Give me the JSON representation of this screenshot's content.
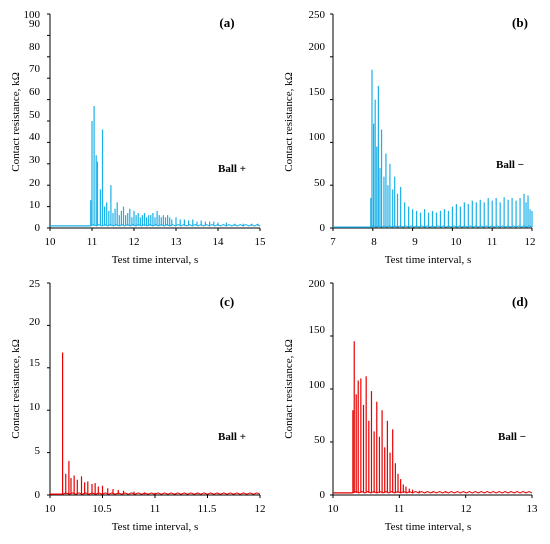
{
  "figure": {
    "xlabel": "Test time interval, s",
    "ylabel": "Contact resistance, kΩ"
  },
  "chart_data": [
    {
      "type": "line",
      "panel_label": "(a)",
      "annotation": "Ball +",
      "color": "#1ab0e8",
      "xlabel": "Test time interval, s",
      "ylabel": "Contact resistance, kΩ",
      "xlim": [
        10,
        15
      ],
      "ylim": [
        0,
        100
      ],
      "xticks": [
        10,
        11,
        12,
        13,
        14,
        15
      ],
      "yticks": [
        0,
        10,
        20,
        30,
        40,
        50,
        60,
        70,
        80,
        90,
        100
      ],
      "baseline": 1,
      "peaks": [
        [
          10.97,
          13
        ],
        [
          11.0,
          50
        ],
        [
          11.05,
          57
        ],
        [
          11.1,
          34
        ],
        [
          11.13,
          31
        ],
        [
          11.2,
          18
        ],
        [
          11.25,
          46
        ],
        [
          11.3,
          10
        ],
        [
          11.35,
          12
        ],
        [
          11.4,
          8
        ],
        [
          11.45,
          20
        ],
        [
          11.5,
          7
        ],
        [
          11.55,
          9
        ],
        [
          11.6,
          12
        ],
        [
          11.65,
          6
        ],
        [
          11.7,
          8
        ],
        [
          11.75,
          10
        ],
        [
          11.8,
          6
        ],
        [
          11.85,
          7
        ],
        [
          11.9,
          9
        ],
        [
          11.95,
          5
        ],
        [
          12.0,
          8
        ],
        [
          12.05,
          6
        ],
        [
          12.1,
          7
        ],
        [
          12.15,
          5
        ],
        [
          12.2,
          6
        ],
        [
          12.25,
          7
        ],
        [
          12.3,
          5
        ],
        [
          12.35,
          6
        ],
        [
          12.4,
          6
        ],
        [
          12.45,
          7
        ],
        [
          12.5,
          5
        ],
        [
          12.55,
          8
        ],
        [
          12.6,
          6
        ],
        [
          12.65,
          5
        ],
        [
          12.7,
          6
        ],
        [
          12.75,
          5
        ],
        [
          12.8,
          6
        ],
        [
          12.85,
          5
        ],
        [
          12.9,
          4
        ],
        [
          13.0,
          5
        ],
        [
          13.1,
          4
        ],
        [
          13.2,
          4
        ],
        [
          13.3,
          3.5
        ],
        [
          13.4,
          4
        ],
        [
          13.5,
          3
        ],
        [
          13.6,
          3.5
        ],
        [
          13.7,
          3
        ],
        [
          13.8,
          3
        ],
        [
          13.9,
          3
        ],
        [
          14.0,
          2.5
        ],
        [
          14.2,
          2.5
        ],
        [
          14.4,
          2
        ],
        [
          14.6,
          2
        ],
        [
          14.8,
          2
        ],
        [
          14.95,
          2
        ]
      ]
    },
    {
      "type": "line",
      "panel_label": "(b)",
      "annotation": "Ball −",
      "color": "#1ab0e8",
      "xlabel": "Test time interval, s",
      "ylabel": "Contact resistance, kΩ",
      "xlim": [
        7,
        12
      ],
      "ylim": [
        0,
        250
      ],
      "xticks": [
        7,
        8,
        9,
        10,
        11,
        12
      ],
      "yticks": [
        0,
        50,
        100,
        150,
        200,
        250
      ],
      "baseline": 1,
      "peaks": [
        [
          7.95,
          35
        ],
        [
          7.98,
          185
        ],
        [
          8.02,
          122
        ],
        [
          8.06,
          150
        ],
        [
          8.1,
          95
        ],
        [
          8.14,
          166
        ],
        [
          8.18,
          70
        ],
        [
          8.22,
          115
        ],
        [
          8.28,
          60
        ],
        [
          8.33,
          87
        ],
        [
          8.38,
          50
        ],
        [
          8.43,
          75
        ],
        [
          8.5,
          45
        ],
        [
          8.55,
          60
        ],
        [
          8.62,
          40
        ],
        [
          8.7,
          48
        ],
        [
          8.8,
          30
        ],
        [
          8.9,
          25
        ],
        [
          9.0,
          22
        ],
        [
          9.1,
          20
        ],
        [
          9.2,
          18
        ],
        [
          9.3,
          22
        ],
        [
          9.4,
          18
        ],
        [
          9.5,
          20
        ],
        [
          9.6,
          18
        ],
        [
          9.7,
          20
        ],
        [
          9.8,
          22
        ],
        [
          9.9,
          20
        ],
        [
          10.0,
          25
        ],
        [
          10.1,
          28
        ],
        [
          10.2,
          25
        ],
        [
          10.3,
          30
        ],
        [
          10.4,
          28
        ],
        [
          10.5,
          32
        ],
        [
          10.6,
          30
        ],
        [
          10.7,
          33
        ],
        [
          10.8,
          30
        ],
        [
          10.9,
          35
        ],
        [
          11.0,
          32
        ],
        [
          11.1,
          35
        ],
        [
          11.2,
          30
        ],
        [
          11.3,
          36
        ],
        [
          11.4,
          33
        ],
        [
          11.5,
          35
        ],
        [
          11.6,
          32
        ],
        [
          11.7,
          35
        ],
        [
          11.8,
          40
        ],
        [
          11.85,
          30
        ],
        [
          11.9,
          38
        ],
        [
          11.95,
          22
        ],
        [
          12.0,
          20
        ]
      ]
    },
    {
      "type": "line",
      "panel_label": "(c)",
      "annotation": "Ball +",
      "color": "#e60000",
      "xlabel": "Test time interval, s",
      "ylabel": "Contact resistance, kΩ",
      "xlim": [
        10,
        12
      ],
      "ylim": [
        0,
        25
      ],
      "xticks": [
        10,
        10.5,
        11,
        11.5,
        12
      ],
      "yticks": [
        0,
        5,
        10,
        15,
        20,
        25
      ],
      "baseline": 0.1,
      "peaks": [
        [
          10.12,
          16.8
        ],
        [
          10.15,
          2.5
        ],
        [
          10.18,
          4.0
        ],
        [
          10.2,
          2.0
        ],
        [
          10.23,
          2.3
        ],
        [
          10.26,
          1.8
        ],
        [
          10.3,
          2.2
        ],
        [
          10.33,
          1.5
        ],
        [
          10.36,
          1.6
        ],
        [
          10.4,
          1.3
        ],
        [
          10.43,
          1.4
        ],
        [
          10.46,
          1.0
        ],
        [
          10.5,
          1.1
        ],
        [
          10.55,
          0.8
        ],
        [
          10.6,
          0.7
        ],
        [
          10.65,
          0.6
        ],
        [
          10.7,
          0.5
        ],
        [
          10.8,
          0.4
        ],
        [
          10.9,
          0.3
        ],
        [
          11.0,
          0.25
        ],
        [
          11.2,
          0.2
        ],
        [
          11.4,
          0.15
        ],
        [
          11.6,
          0.15
        ],
        [
          11.8,
          0.12
        ],
        [
          12.0,
          0.1
        ]
      ]
    },
    {
      "type": "line",
      "panel_label": "(d)",
      "annotation": "Ball −",
      "color": "#e60000",
      "xlabel": "Test time interval, s",
      "ylabel": "Contact resistance, kΩ",
      "xlim": [
        10,
        13
      ],
      "ylim": [
        0,
        200
      ],
      "xticks": [
        10,
        11,
        12,
        13
      ],
      "yticks": [
        0,
        50,
        100,
        150,
        200
      ],
      "baseline": 2,
      "peaks": [
        [
          10.3,
          80
        ],
        [
          10.32,
          145
        ],
        [
          10.35,
          95
        ],
        [
          10.38,
          108
        ],
        [
          10.42,
          110
        ],
        [
          10.46,
          85
        ],
        [
          10.5,
          112
        ],
        [
          10.54,
          70
        ],
        [
          10.58,
          98
        ],
        [
          10.62,
          60
        ],
        [
          10.66,
          88
        ],
        [
          10.7,
          55
        ],
        [
          10.74,
          80
        ],
        [
          10.78,
          45
        ],
        [
          10.82,
          70
        ],
        [
          10.86,
          40
        ],
        [
          10.9,
          62
        ],
        [
          10.94,
          30
        ],
        [
          10.98,
          20
        ],
        [
          11.02,
          15
        ],
        [
          11.06,
          10
        ],
        [
          11.1,
          8
        ],
        [
          11.15,
          6
        ],
        [
          11.2,
          5
        ],
        [
          11.3,
          4
        ],
        [
          11.4,
          3
        ],
        [
          11.5,
          3
        ],
        [
          11.7,
          2.5
        ],
        [
          12.0,
          2.5
        ],
        [
          12.5,
          2
        ],
        [
          13.0,
          2
        ]
      ]
    }
  ]
}
